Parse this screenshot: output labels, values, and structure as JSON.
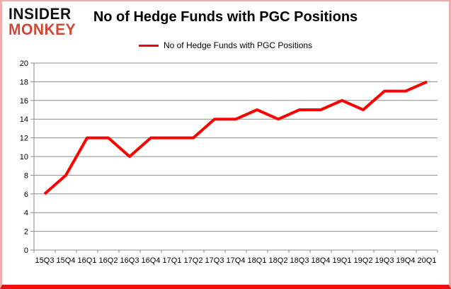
{
  "brand": {
    "line1": "INSIDER",
    "line2": "MONKEY"
  },
  "title": "No of Hedge Funds with PGC Positions",
  "legend": {
    "label": "No of Hedge Funds with PGC Positions"
  },
  "colors": {
    "line": "#ff0000",
    "grid": "#8c8c8c",
    "axis_text": "#000000",
    "logo_red": "#d04737",
    "frame_border": "#f2abab",
    "frame_bottom": "#ef0e0e"
  },
  "chart_data": {
    "type": "line",
    "title": "No of Hedge Funds with PGC Positions",
    "categories": [
      "15Q3",
      "15Q4",
      "16Q1",
      "16Q2",
      "16Q3",
      "16Q4",
      "17Q1",
      "17Q2",
      "17Q3",
      "17Q4",
      "18Q1",
      "18Q2",
      "18Q3",
      "18Q4",
      "19Q1",
      "19Q2",
      "19Q3",
      "19Q4",
      "20Q1"
    ],
    "series": [
      {
        "name": "No of Hedge Funds with PGC Positions",
        "values": [
          6,
          8,
          12,
          12,
          10,
          12,
          12,
          12,
          14,
          14,
          15,
          14,
          15,
          15,
          16,
          15,
          17,
          17,
          18
        ]
      }
    ],
    "xlabel": "",
    "ylabel": "",
    "ylim": [
      0,
      20
    ],
    "ytick_step": 2,
    "grid": true,
    "legend_position": "top"
  }
}
